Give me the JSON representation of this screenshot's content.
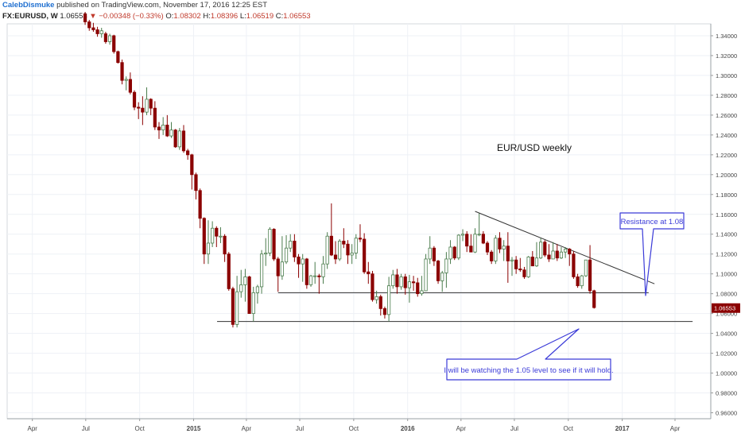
{
  "header": {
    "author": "CalebDismuke",
    "published": "published on TradingView.com, November 17, 2016 12:25 EST"
  },
  "ohlc": {
    "symbol": "FX:EURUSD, W",
    "last": "1.06553",
    "change": "▼ −0.00348 (−0.33%)",
    "o_label": "O:",
    "o": "1.08302",
    "h_label": "H:",
    "h": "1.08396",
    "l_label": "L:",
    "l": "1.06519",
    "c_label": "C:",
    "c": "1.06553"
  },
  "colors": {
    "up": "#2e7d32",
    "down": "#8b0000",
    "callout_stroke": "#3b3bd8",
    "callout_fill": "#ffffff",
    "callout_text": "#3b3bd8",
    "trendline": "#333333",
    "grid": "#eef1f6"
  },
  "annotations": {
    "title": "EUR/USD weekly",
    "resistance": "Resistance at 1.08",
    "support": "I will be watching the 1.05 level to see if it will hold."
  },
  "chart_data": {
    "type": "candlestick",
    "symbol": "EURUSD",
    "interval": "weekly",
    "ylim": [
      0.954,
      1.352
    ],
    "y_ticks": [
      "1.34000",
      "1.32000",
      "1.30000",
      "1.28000",
      "1.26000",
      "1.24000",
      "1.22000",
      "1.20000",
      "1.18000",
      "1.16000",
      "1.14000",
      "1.12000",
      "1.10000",
      "1.08000",
      "1.06000",
      "1.04000",
      "1.02000",
      "1.00000",
      "0.98000",
      "0.96000"
    ],
    "x_ticks": [
      {
        "label": "Apr",
        "date": "2014-04-01"
      },
      {
        "label": "Jul",
        "date": "2014-07-01"
      },
      {
        "label": "Oct",
        "date": "2014-10-01"
      },
      {
        "label": "2015",
        "date": "2015-01-01"
      },
      {
        "label": "Apr",
        "date": "2015-04-01"
      },
      {
        "label": "Jul",
        "date": "2015-07-01"
      },
      {
        "label": "Oct",
        "date": "2015-10-01"
      },
      {
        "label": "2016",
        "date": "2016-01-01"
      },
      {
        "label": "Apr",
        "date": "2016-04-01"
      },
      {
        "label": "Jul",
        "date": "2016-07-01"
      },
      {
        "label": "Oct",
        "date": "2016-10-01"
      },
      {
        "label": "2017",
        "date": "2017-01-01"
      },
      {
        "label": "Apr",
        "date": "2017-04-01"
      }
    ],
    "last_price": 1.06553,
    "lines": [
      {
        "name": "support-1.05",
        "from": {
          "date": "2015-02-10",
          "y": 1.052
        },
        "to": {
          "date": "2017-05-01",
          "y": 1.052
        }
      },
      {
        "name": "range-1.08",
        "from": {
          "date": "2015-05-25",
          "y": 1.081
        },
        "to": {
          "date": "2017-02-15",
          "y": 1.081
        }
      },
      {
        "name": "descending-resistance",
        "from": {
          "date": "2016-04-25",
          "y": 1.163
        },
        "to": {
          "date": "2017-02-25",
          "y": 1.09
        }
      }
    ],
    "candles": [
      {
        "d": "2014-06-30",
        "o": 1.362,
        "h": 1.364,
        "l": 1.351,
        "c": 1.354
      },
      {
        "d": "2014-07-07",
        "o": 1.354,
        "h": 1.356,
        "l": 1.345,
        "c": 1.348
      },
      {
        "d": "2014-07-14",
        "o": 1.348,
        "h": 1.353,
        "l": 1.344,
        "c": 1.346
      },
      {
        "d": "2014-07-21",
        "o": 1.346,
        "h": 1.349,
        "l": 1.339,
        "c": 1.342
      },
      {
        "d": "2014-07-28",
        "o": 1.342,
        "h": 1.348,
        "l": 1.338,
        "c": 1.345
      },
      {
        "d": "2014-08-04",
        "o": 1.342,
        "h": 1.344,
        "l": 1.332,
        "c": 1.334
      },
      {
        "d": "2014-08-11",
        "o": 1.334,
        "h": 1.342,
        "l": 1.331,
        "c": 1.34
      },
      {
        "d": "2014-08-18",
        "o": 1.34,
        "h": 1.341,
        "l": 1.322,
        "c": 1.324
      },
      {
        "d": "2014-08-25",
        "o": 1.324,
        "h": 1.325,
        "l": 1.312,
        "c": 1.313
      },
      {
        "d": "2014-09-01",
        "o": 1.313,
        "h": 1.316,
        "l": 1.291,
        "c": 1.295
      },
      {
        "d": "2014-09-08",
        "o": 1.295,
        "h": 1.299,
        "l": 1.285,
        "c": 1.296
      },
      {
        "d": "2014-09-15",
        "o": 1.296,
        "h": 1.303,
        "l": 1.281,
        "c": 1.283
      },
      {
        "d": "2014-09-22",
        "o": 1.283,
        "h": 1.285,
        "l": 1.265,
        "c": 1.268
      },
      {
        "d": "2014-09-29",
        "o": 1.268,
        "h": 1.273,
        "l": 1.256,
        "c": 1.267
      },
      {
        "d": "2014-10-06",
        "o": 1.267,
        "h": 1.279,
        "l": 1.25,
        "c": 1.263
      },
      {
        "d": "2014-10-13",
        "o": 1.263,
        "h": 1.288,
        "l": 1.26,
        "c": 1.276
      },
      {
        "d": "2014-10-20",
        "o": 1.276,
        "h": 1.277,
        "l": 1.26,
        "c": 1.267
      },
      {
        "d": "2014-10-27",
        "o": 1.267,
        "h": 1.274,
        "l": 1.245,
        "c": 1.248
      },
      {
        "d": "2014-11-03",
        "o": 1.248,
        "h": 1.253,
        "l": 1.236,
        "c": 1.245
      },
      {
        "d": "2014-11-10",
        "o": 1.245,
        "h": 1.258,
        "l": 1.24,
        "c": 1.25
      },
      {
        "d": "2014-11-17",
        "o": 1.25,
        "h": 1.26,
        "l": 1.238,
        "c": 1.239
      },
      {
        "d": "2014-11-24",
        "o": 1.239,
        "h": 1.253,
        "l": 1.237,
        "c": 1.245
      },
      {
        "d": "2014-12-01",
        "o": 1.245,
        "h": 1.246,
        "l": 1.227,
        "c": 1.228
      },
      {
        "d": "2014-12-08",
        "o": 1.228,
        "h": 1.247,
        "l": 1.225,
        "c": 1.244
      },
      {
        "d": "2014-12-15",
        "o": 1.244,
        "h": 1.25,
        "l": 1.222,
        "c": 1.224
      },
      {
        "d": "2014-12-22",
        "o": 1.224,
        "h": 1.226,
        "l": 1.215,
        "c": 1.22
      },
      {
        "d": "2014-12-29",
        "o": 1.22,
        "h": 1.221,
        "l": 1.185,
        "c": 1.2
      },
      {
        "d": "2015-01-05",
        "o": 1.2,
        "h": 1.202,
        "l": 1.175,
        "c": 1.184
      },
      {
        "d": "2015-01-12",
        "o": 1.184,
        "h": 1.186,
        "l": 1.146,
        "c": 1.156
      },
      {
        "d": "2015-01-19",
        "o": 1.156,
        "h": 1.157,
        "l": 1.11,
        "c": 1.12
      },
      {
        "d": "2015-01-26",
        "o": 1.12,
        "h": 1.154,
        "l": 1.11,
        "c": 1.131
      },
      {
        "d": "2015-02-02",
        "o": 1.131,
        "h": 1.153,
        "l": 1.127,
        "c": 1.146
      },
      {
        "d": "2015-02-09",
        "o": 1.146,
        "h": 1.148,
        "l": 1.127,
        "c": 1.138
      },
      {
        "d": "2015-02-16",
        "o": 1.138,
        "h": 1.147,
        "l": 1.131,
        "c": 1.138
      },
      {
        "d": "2015-02-23",
        "o": 1.138,
        "h": 1.14,
        "l": 1.112,
        "c": 1.12
      },
      {
        "d": "2015-03-02",
        "o": 1.12,
        "h": 1.122,
        "l": 1.083,
        "c": 1.085
      },
      {
        "d": "2015-03-09",
        "o": 1.085,
        "h": 1.087,
        "l": 1.046,
        "c": 1.049
      },
      {
        "d": "2015-03-16",
        "o": 1.049,
        "h": 1.098,
        "l": 1.046,
        "c": 1.082
      },
      {
        "d": "2015-03-23",
        "o": 1.082,
        "h": 1.104,
        "l": 1.076,
        "c": 1.089
      },
      {
        "d": "2015-03-30",
        "o": 1.089,
        "h": 1.105,
        "l": 1.072,
        "c": 1.097
      },
      {
        "d": "2015-04-06",
        "o": 1.097,
        "h": 1.098,
        "l": 1.06,
        "c": 1.06
      },
      {
        "d": "2015-04-13",
        "o": 1.06,
        "h": 1.087,
        "l": 1.052,
        "c": 1.081
      },
      {
        "d": "2015-04-20",
        "o": 1.081,
        "h": 1.089,
        "l": 1.07,
        "c": 1.087
      },
      {
        "d": "2015-04-27",
        "o": 1.087,
        "h": 1.124,
        "l": 1.08,
        "c": 1.12
      },
      {
        "d": "2015-05-04",
        "o": 1.12,
        "h": 1.136,
        "l": 1.108,
        "c": 1.121
      },
      {
        "d": "2015-05-11",
        "o": 1.121,
        "h": 1.147,
        "l": 1.118,
        "c": 1.145
      },
      {
        "d": "2015-05-18",
        "o": 1.145,
        "h": 1.146,
        "l": 1.113,
        "c": 1.115
      },
      {
        "d": "2015-05-25",
        "o": 1.115,
        "h": 1.117,
        "l": 1.082,
        "c": 1.098
      },
      {
        "d": "2015-06-01",
        "o": 1.098,
        "h": 1.138,
        "l": 1.094,
        "c": 1.112
      },
      {
        "d": "2015-06-08",
        "o": 1.112,
        "h": 1.139,
        "l": 1.11,
        "c": 1.126
      },
      {
        "d": "2015-06-15",
        "o": 1.126,
        "h": 1.14,
        "l": 1.122,
        "c": 1.133
      },
      {
        "d": "2015-06-22",
        "o": 1.133,
        "h": 1.14,
        "l": 1.112,
        "c": 1.117
      },
      {
        "d": "2015-06-29",
        "o": 1.117,
        "h": 1.12,
        "l": 1.096,
        "c": 1.11
      },
      {
        "d": "2015-07-06",
        "o": 1.11,
        "h": 1.12,
        "l": 1.092,
        "c": 1.115
      },
      {
        "d": "2015-07-13",
        "o": 1.115,
        "h": 1.116,
        "l": 1.085,
        "c": 1.089
      },
      {
        "d": "2015-07-20",
        "o": 1.089,
        "h": 1.099,
        "l": 1.087,
        "c": 1.098
      },
      {
        "d": "2015-07-27",
        "o": 1.098,
        "h": 1.112,
        "l": 1.09,
        "c": 1.098
      },
      {
        "d": "2015-08-03",
        "o": 1.098,
        "h": 1.1,
        "l": 1.08,
        "c": 1.097
      },
      {
        "d": "2015-08-10",
        "o": 1.097,
        "h": 1.118,
        "l": 1.09,
        "c": 1.11
      },
      {
        "d": "2015-08-17",
        "o": 1.11,
        "h": 1.142,
        "l": 1.105,
        "c": 1.138
      },
      {
        "d": "2015-08-24",
        "o": 1.138,
        "h": 1.171,
        "l": 1.118,
        "c": 1.119
      },
      {
        "d": "2015-08-31",
        "o": 1.119,
        "h": 1.133,
        "l": 1.11,
        "c": 1.115
      },
      {
        "d": "2015-09-07",
        "o": 1.115,
        "h": 1.135,
        "l": 1.113,
        "c": 1.133
      },
      {
        "d": "2015-09-14",
        "o": 1.133,
        "h": 1.146,
        "l": 1.126,
        "c": 1.13
      },
      {
        "d": "2015-09-21",
        "o": 1.13,
        "h": 1.134,
        "l": 1.11,
        "c": 1.119
      },
      {
        "d": "2015-09-28",
        "o": 1.119,
        "h": 1.13,
        "l": 1.11,
        "c": 1.121
      },
      {
        "d": "2015-10-05",
        "o": 1.121,
        "h": 1.14,
        "l": 1.115,
        "c": 1.136
      },
      {
        "d": "2015-10-12",
        "o": 1.136,
        "h": 1.15,
        "l": 1.132,
        "c": 1.135
      },
      {
        "d": "2015-10-19",
        "o": 1.135,
        "h": 1.141,
        "l": 1.1,
        "c": 1.102
      },
      {
        "d": "2015-10-26",
        "o": 1.102,
        "h": 1.112,
        "l": 1.09,
        "c": 1.1
      },
      {
        "d": "2015-11-02",
        "o": 1.1,
        "h": 1.103,
        "l": 1.072,
        "c": 1.074
      },
      {
        "d": "2015-11-09",
        "o": 1.074,
        "h": 1.083,
        "l": 1.07,
        "c": 1.077
      },
      {
        "d": "2015-11-16",
        "o": 1.077,
        "h": 1.079,
        "l": 1.058,
        "c": 1.065
      },
      {
        "d": "2015-11-23",
        "o": 1.065,
        "h": 1.067,
        "l": 1.055,
        "c": 1.059
      },
      {
        "d": "2015-11-30",
        "o": 1.059,
        "h": 1.097,
        "l": 1.052,
        "c": 1.088
      },
      {
        "d": "2015-12-07",
        "o": 1.088,
        "h": 1.104,
        "l": 1.085,
        "c": 1.099
      },
      {
        "d": "2015-12-14",
        "o": 1.099,
        "h": 1.105,
        "l": 1.08,
        "c": 1.087
      },
      {
        "d": "2015-12-21",
        "o": 1.087,
        "h": 1.1,
        "l": 1.084,
        "c": 1.097
      },
      {
        "d": "2015-12-28",
        "o": 1.097,
        "h": 1.1,
        "l": 1.079,
        "c": 1.086
      },
      {
        "d": "2016-01-04",
        "o": 1.086,
        "h": 1.099,
        "l": 1.071,
        "c": 1.092
      },
      {
        "d": "2016-01-11",
        "o": 1.092,
        "h": 1.098,
        "l": 1.083,
        "c": 1.091
      },
      {
        "d": "2016-01-18",
        "o": 1.091,
        "h": 1.096,
        "l": 1.077,
        "c": 1.08
      },
      {
        "d": "2016-01-25",
        "o": 1.08,
        "h": 1.098,
        "l": 1.078,
        "c": 1.083
      },
      {
        "d": "2016-02-01",
        "o": 1.083,
        "h": 1.12,
        "l": 1.083,
        "c": 1.115
      },
      {
        "d": "2016-02-08",
        "o": 1.115,
        "h": 1.138,
        "l": 1.11,
        "c": 1.126
      },
      {
        "d": "2016-02-15",
        "o": 1.126,
        "h": 1.128,
        "l": 1.108,
        "c": 1.113
      },
      {
        "d": "2016-02-22",
        "o": 1.113,
        "h": 1.114,
        "l": 1.09,
        "c": 1.093
      },
      {
        "d": "2016-02-29",
        "o": 1.093,
        "h": 1.103,
        "l": 1.082,
        "c": 1.101
      },
      {
        "d": "2016-03-07",
        "o": 1.101,
        "h": 1.122,
        "l": 1.086,
        "c": 1.115
      },
      {
        "d": "2016-03-14",
        "o": 1.115,
        "h": 1.134,
        "l": 1.11,
        "c": 1.127
      },
      {
        "d": "2016-03-21",
        "o": 1.127,
        "h": 1.128,
        "l": 1.114,
        "c": 1.116
      },
      {
        "d": "2016-03-28",
        "o": 1.116,
        "h": 1.14,
        "l": 1.114,
        "c": 1.139
      },
      {
        "d": "2016-04-04",
        "o": 1.139,
        "h": 1.145,
        "l": 1.133,
        "c": 1.14
      },
      {
        "d": "2016-04-11",
        "o": 1.14,
        "h": 1.143,
        "l": 1.122,
        "c": 1.128
      },
      {
        "d": "2016-04-18",
        "o": 1.128,
        "h": 1.14,
        "l": 1.122,
        "c": 1.122
      },
      {
        "d": "2016-04-25",
        "o": 1.122,
        "h": 1.146,
        "l": 1.121,
        "c": 1.14
      },
      {
        "d": "2016-05-02",
        "o": 1.14,
        "h": 1.161,
        "l": 1.138,
        "c": 1.14
      },
      {
        "d": "2016-05-09",
        "o": 1.14,
        "h": 1.143,
        "l": 1.13,
        "c": 1.131
      },
      {
        "d": "2016-05-16",
        "o": 1.131,
        "h": 1.133,
        "l": 1.119,
        "c": 1.122
      },
      {
        "d": "2016-05-23",
        "o": 1.122,
        "h": 1.124,
        "l": 1.11,
        "c": 1.113
      },
      {
        "d": "2016-05-30",
        "o": 1.113,
        "h": 1.139,
        "l": 1.11,
        "c": 1.136
      },
      {
        "d": "2016-06-06",
        "o": 1.136,
        "h": 1.142,
        "l": 1.121,
        "c": 1.125
      },
      {
        "d": "2016-06-13",
        "o": 1.125,
        "h": 1.134,
        "l": 1.113,
        "c": 1.128
      },
      {
        "d": "2016-06-20",
        "o": 1.128,
        "h": 1.142,
        "l": 1.091,
        "c": 1.113
      },
      {
        "d": "2016-06-27",
        "o": 1.113,
        "h": 1.117,
        "l": 1.098,
        "c": 1.114
      },
      {
        "d": "2016-07-04",
        "o": 1.114,
        "h": 1.118,
        "l": 1.1,
        "c": 1.105
      },
      {
        "d": "2016-07-11",
        "o": 1.105,
        "h": 1.116,
        "l": 1.102,
        "c": 1.104
      },
      {
        "d": "2016-07-18",
        "o": 1.104,
        "h": 1.107,
        "l": 1.095,
        "c": 1.097
      },
      {
        "d": "2016-07-25",
        "o": 1.097,
        "h": 1.118,
        "l": 1.096,
        "c": 1.117
      },
      {
        "d": "2016-08-01",
        "o": 1.117,
        "h": 1.123,
        "l": 1.108,
        "c": 1.108
      },
      {
        "d": "2016-08-08",
        "o": 1.108,
        "h": 1.132,
        "l": 1.107,
        "c": 1.116
      },
      {
        "d": "2016-08-15",
        "o": 1.116,
        "h": 1.136,
        "l": 1.115,
        "c": 1.132
      },
      {
        "d": "2016-08-22",
        "o": 1.132,
        "h": 1.134,
        "l": 1.117,
        "c": 1.119
      },
      {
        "d": "2016-08-29",
        "o": 1.119,
        "h": 1.13,
        "l": 1.112,
        "c": 1.115
      },
      {
        "d": "2016-09-05",
        "o": 1.115,
        "h": 1.132,
        "l": 1.115,
        "c": 1.123
      },
      {
        "d": "2016-09-12",
        "o": 1.123,
        "h": 1.13,
        "l": 1.113,
        "c": 1.116
      },
      {
        "d": "2016-09-19",
        "o": 1.116,
        "h": 1.127,
        "l": 1.115,
        "c": 1.122
      },
      {
        "d": "2016-09-26",
        "o": 1.122,
        "h": 1.127,
        "l": 1.116,
        "c": 1.125
      },
      {
        "d": "2016-10-03",
        "o": 1.125,
        "h": 1.126,
        "l": 1.108,
        "c": 1.12
      },
      {
        "d": "2016-10-10",
        "o": 1.12,
        "h": 1.123,
        "l": 1.095,
        "c": 1.097
      },
      {
        "d": "2016-10-17",
        "o": 1.097,
        "h": 1.1,
        "l": 1.086,
        "c": 1.088
      },
      {
        "d": "2016-10-24",
        "o": 1.088,
        "h": 1.099,
        "l": 1.085,
        "c": 1.098
      },
      {
        "d": "2016-10-31",
        "o": 1.098,
        "h": 1.114,
        "l": 1.097,
        "c": 1.114
      },
      {
        "d": "2016-11-07",
        "o": 1.114,
        "h": 1.129,
        "l": 1.08,
        "c": 1.083
      },
      {
        "d": "2016-11-14",
        "o": 1.083,
        "h": 1.084,
        "l": 1.065,
        "c": 1.066
      }
    ]
  }
}
